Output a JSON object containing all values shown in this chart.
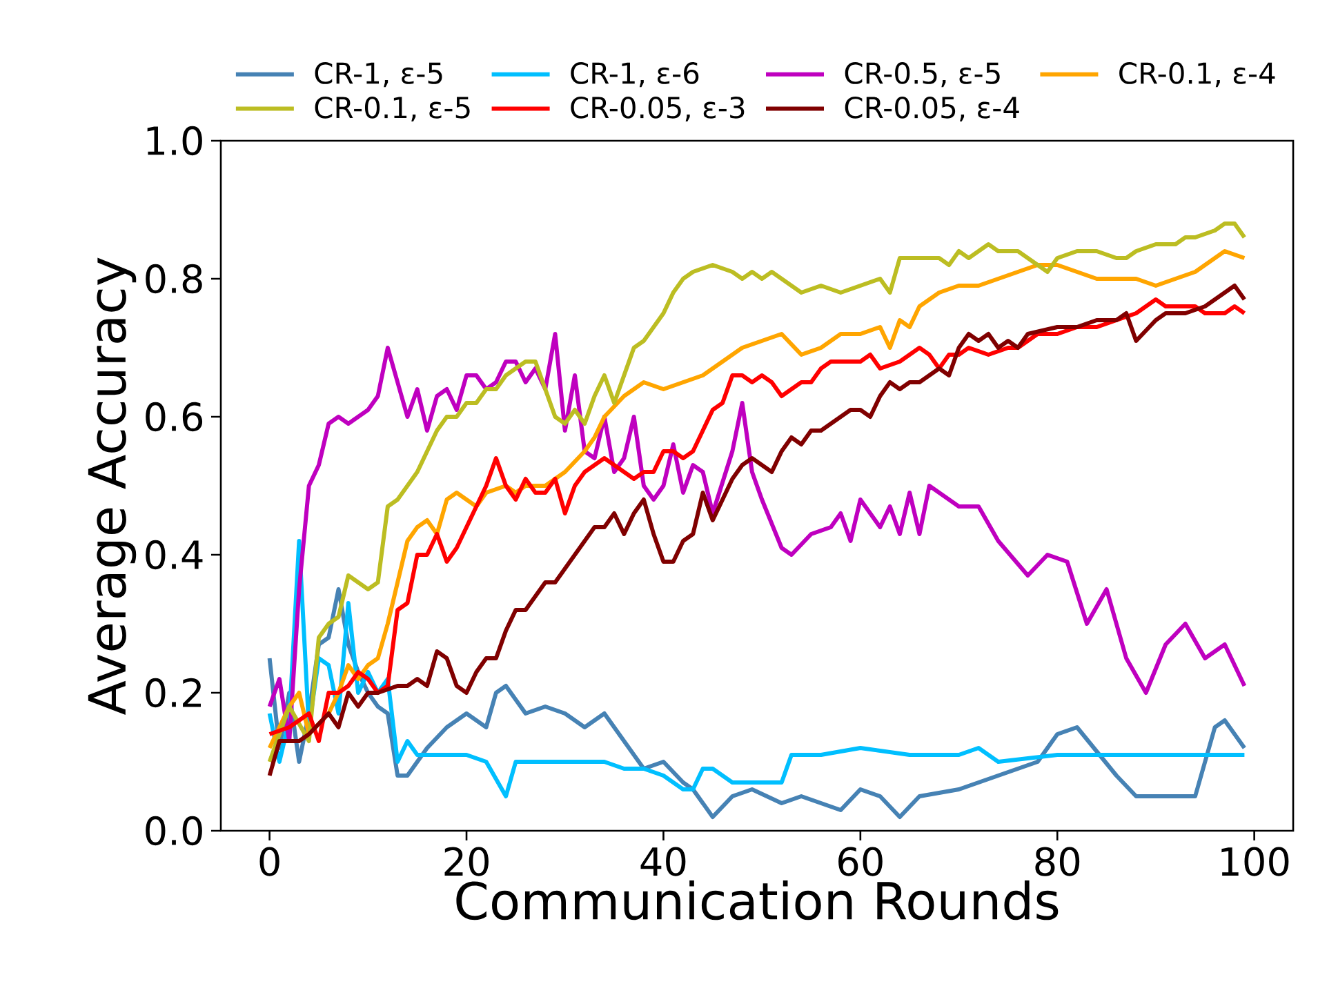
{
  "chart_data": {
    "type": "line",
    "xlabel": "Communication Rounds",
    "ylabel": "Average Accuracy",
    "xlim": [
      -4.95,
      103.95
    ],
    "ylim": [
      0,
      1
    ],
    "xticks": [
      0,
      20,
      40,
      60,
      80,
      100
    ],
    "yticks": [
      {
        "value": 0,
        "label": "0.0"
      },
      {
        "value": 0.2,
        "label": "0.2"
      },
      {
        "value": 0.4,
        "label": "0.4"
      },
      {
        "value": 0.6,
        "label": "0.6"
      },
      {
        "value": 0.8,
        "label": "0.8"
      },
      {
        "value": 1,
        "label": "1.0"
      }
    ],
    "legend": "top",
    "series": [
      {
        "name": "CR-1, ε-5",
        "color": "#4682b4",
        "x": [
          0,
          1,
          2,
          3,
          4,
          5,
          6,
          7,
          8,
          9,
          10,
          11,
          12,
          13,
          14,
          16,
          18,
          20,
          22,
          23,
          24,
          26,
          28,
          30,
          32,
          34,
          36,
          38,
          40,
          42,
          43,
          45,
          47,
          49,
          52,
          54,
          56,
          58,
          60,
          62,
          64,
          66,
          70,
          74,
          78,
          80,
          82,
          86,
          88,
          90,
          94,
          96,
          97,
          99
        ],
        "values": [
          0.25,
          0.12,
          0.2,
          0.1,
          0.17,
          0.27,
          0.28,
          0.35,
          0.27,
          0.23,
          0.2,
          0.18,
          0.17,
          0.08,
          0.08,
          0.12,
          0.15,
          0.17,
          0.15,
          0.2,
          0.21,
          0.17,
          0.18,
          0.17,
          0.15,
          0.17,
          0.13,
          0.09,
          0.1,
          0.07,
          0.06,
          0.02,
          0.05,
          0.06,
          0.04,
          0.05,
          0.04,
          0.03,
          0.06,
          0.05,
          0.02,
          0.05,
          0.06,
          0.08,
          0.1,
          0.14,
          0.15,
          0.08,
          0.05,
          0.05,
          0.05,
          0.15,
          0.16,
          0.12
        ]
      },
      {
        "name": "CR-1, ε-6",
        "color": "#00bfff",
        "x": [
          0,
          1,
          2,
          3,
          4,
          5,
          6,
          7,
          8,
          9,
          10,
          11,
          12,
          13,
          14,
          15,
          18,
          20,
          22,
          24,
          25,
          30,
          34,
          36,
          38,
          40,
          42,
          43,
          44,
          45,
          47,
          50,
          52,
          53,
          56,
          60,
          65,
          70,
          72,
          74,
          80,
          90,
          99
        ],
        "values": [
          0.17,
          0.1,
          0.16,
          0.42,
          0.15,
          0.25,
          0.24,
          0.17,
          0.33,
          0.2,
          0.23,
          0.2,
          0.22,
          0.1,
          0.13,
          0.11,
          0.11,
          0.11,
          0.1,
          0.05,
          0.1,
          0.1,
          0.1,
          0.09,
          0.09,
          0.08,
          0.06,
          0.06,
          0.09,
          0.09,
          0.07,
          0.07,
          0.07,
          0.11,
          0.11,
          0.12,
          0.11,
          0.11,
          0.12,
          0.1,
          0.11,
          0.11,
          0.11
        ]
      },
      {
        "name": "CR-0.5, ε-5",
        "color": "#bf00bf",
        "x": [
          0,
          1,
          2,
          3,
          4,
          5,
          6,
          7,
          8,
          9,
          10,
          11,
          12,
          13,
          14,
          15,
          16,
          17,
          18,
          19,
          20,
          21,
          22,
          23,
          24,
          25,
          26,
          27,
          28,
          29,
          30,
          31,
          32,
          33,
          34,
          35,
          36,
          37,
          38,
          39,
          40,
          41,
          42,
          43,
          44,
          45,
          47,
          48,
          49,
          50,
          52,
          53,
          55,
          57,
          58,
          59,
          60,
          62,
          63,
          64,
          65,
          66,
          67,
          70,
          72,
          74,
          77,
          79,
          81,
          83,
          85,
          87,
          89,
          91,
          93,
          95,
          97,
          99
        ],
        "values": [
          0.18,
          0.22,
          0.13,
          0.35,
          0.5,
          0.53,
          0.59,
          0.6,
          0.59,
          0.6,
          0.61,
          0.63,
          0.7,
          0.65,
          0.6,
          0.64,
          0.58,
          0.63,
          0.64,
          0.61,
          0.66,
          0.66,
          0.64,
          0.65,
          0.68,
          0.68,
          0.65,
          0.67,
          0.64,
          0.72,
          0.58,
          0.66,
          0.55,
          0.54,
          0.6,
          0.52,
          0.54,
          0.6,
          0.5,
          0.48,
          0.5,
          0.56,
          0.49,
          0.53,
          0.52,
          0.46,
          0.55,
          0.62,
          0.52,
          0.48,
          0.41,
          0.4,
          0.43,
          0.44,
          0.46,
          0.42,
          0.48,
          0.44,
          0.47,
          0.43,
          0.49,
          0.43,
          0.5,
          0.47,
          0.47,
          0.42,
          0.37,
          0.4,
          0.39,
          0.3,
          0.35,
          0.25,
          0.2,
          0.27,
          0.3,
          0.25,
          0.27,
          0.21
        ]
      },
      {
        "name": "CR-0.1, ε-4",
        "color": "#ffa500",
        "x": [
          0,
          2,
          3,
          4,
          6,
          7,
          8,
          9,
          10,
          11,
          12,
          14,
          15,
          16,
          17,
          18,
          19,
          20,
          21,
          22,
          24,
          25,
          26,
          28,
          30,
          32,
          33,
          34,
          36,
          37,
          38,
          40,
          42,
          44,
          46,
          48,
          50,
          52,
          54,
          56,
          58,
          60,
          62,
          63,
          64,
          65,
          66,
          68,
          70,
          72,
          74,
          76,
          78,
          80,
          82,
          84,
          86,
          88,
          90,
          92,
          94,
          96,
          97,
          99
        ],
        "values": [
          0.12,
          0.18,
          0.2,
          0.14,
          0.17,
          0.2,
          0.24,
          0.22,
          0.24,
          0.25,
          0.3,
          0.42,
          0.44,
          0.45,
          0.43,
          0.48,
          0.49,
          0.48,
          0.47,
          0.49,
          0.5,
          0.49,
          0.5,
          0.5,
          0.52,
          0.55,
          0.57,
          0.6,
          0.63,
          0.64,
          0.65,
          0.64,
          0.65,
          0.66,
          0.68,
          0.7,
          0.71,
          0.72,
          0.69,
          0.7,
          0.72,
          0.72,
          0.73,
          0.7,
          0.74,
          0.73,
          0.76,
          0.78,
          0.79,
          0.79,
          0.8,
          0.81,
          0.82,
          0.82,
          0.81,
          0.8,
          0.8,
          0.8,
          0.79,
          0.8,
          0.81,
          0.83,
          0.84,
          0.83
        ]
      },
      {
        "name": "CR-0.1, ε-5",
        "color": "#bcbd22",
        "x": [
          0,
          2,
          4,
          5,
          6,
          7,
          8,
          9,
          10,
          11,
          12,
          13,
          14,
          15,
          16,
          17,
          18,
          19,
          20,
          21,
          22,
          23,
          24,
          25,
          26,
          27,
          28,
          29,
          30,
          31,
          32,
          33,
          34,
          35,
          36,
          37,
          38,
          39,
          40,
          41,
          42,
          43,
          45,
          47,
          48,
          49,
          50,
          51,
          52,
          54,
          56,
          58,
          60,
          62,
          63,
          64,
          66,
          68,
          69,
          70,
          71,
          72,
          73,
          74,
          76,
          78,
          79,
          80,
          82,
          84,
          86,
          87,
          88,
          90,
          92,
          93,
          94,
          96,
          97,
          98,
          99
        ],
        "values": [
          0.1,
          0.18,
          0.13,
          0.28,
          0.3,
          0.31,
          0.37,
          0.36,
          0.35,
          0.36,
          0.47,
          0.48,
          0.5,
          0.52,
          0.55,
          0.58,
          0.6,
          0.6,
          0.62,
          0.62,
          0.64,
          0.64,
          0.66,
          0.67,
          0.68,
          0.68,
          0.64,
          0.6,
          0.59,
          0.61,
          0.59,
          0.63,
          0.66,
          0.62,
          0.66,
          0.7,
          0.71,
          0.73,
          0.75,
          0.78,
          0.8,
          0.81,
          0.82,
          0.81,
          0.8,
          0.81,
          0.8,
          0.81,
          0.8,
          0.78,
          0.79,
          0.78,
          0.79,
          0.8,
          0.78,
          0.83,
          0.83,
          0.83,
          0.82,
          0.84,
          0.83,
          0.84,
          0.85,
          0.84,
          0.84,
          0.82,
          0.81,
          0.83,
          0.84,
          0.84,
          0.83,
          0.83,
          0.84,
          0.85,
          0.85,
          0.86,
          0.86,
          0.87,
          0.88,
          0.88,
          0.86
        ]
      },
      {
        "name": "CR-0.05, ε-3",
        "color": "#ff0000",
        "x": [
          0,
          2,
          4,
          5,
          6,
          7,
          8,
          9,
          10,
          11,
          12,
          13,
          14,
          15,
          16,
          17,
          18,
          19,
          20,
          21,
          22,
          23,
          24,
          25,
          26,
          27,
          28,
          29,
          30,
          31,
          32,
          33,
          34,
          35,
          36,
          37,
          38,
          39,
          40,
          41,
          42,
          43,
          44,
          45,
          46,
          47,
          48,
          49,
          50,
          51,
          52,
          53,
          54,
          55,
          56,
          57,
          58,
          60,
          61,
          62,
          64,
          65,
          66,
          67,
          68,
          69,
          70,
          71,
          73,
          75,
          76,
          77,
          78,
          80,
          82,
          84,
          86,
          88,
          90,
          91,
          92,
          94,
          95,
          97,
          98,
          99
        ],
        "values": [
          0.14,
          0.15,
          0.17,
          0.13,
          0.2,
          0.2,
          0.21,
          0.23,
          0.22,
          0.2,
          0.21,
          0.32,
          0.33,
          0.4,
          0.4,
          0.43,
          0.39,
          0.41,
          0.44,
          0.47,
          0.5,
          0.54,
          0.5,
          0.48,
          0.51,
          0.49,
          0.49,
          0.51,
          0.46,
          0.5,
          0.52,
          0.53,
          0.54,
          0.53,
          0.52,
          0.51,
          0.52,
          0.52,
          0.55,
          0.55,
          0.54,
          0.55,
          0.58,
          0.61,
          0.62,
          0.66,
          0.66,
          0.65,
          0.66,
          0.65,
          0.63,
          0.64,
          0.65,
          0.65,
          0.67,
          0.68,
          0.68,
          0.68,
          0.69,
          0.67,
          0.68,
          0.69,
          0.7,
          0.69,
          0.67,
          0.69,
          0.69,
          0.7,
          0.69,
          0.7,
          0.7,
          0.71,
          0.72,
          0.72,
          0.73,
          0.73,
          0.74,
          0.75,
          0.77,
          0.76,
          0.76,
          0.76,
          0.75,
          0.75,
          0.76,
          0.75
        ]
      },
      {
        "name": "CR-0.05, ε-4",
        "color": "#800000",
        "x": [
          0,
          1,
          3,
          4,
          6,
          7,
          8,
          9,
          10,
          11,
          13,
          14,
          15,
          16,
          17,
          18,
          19,
          20,
          21,
          22,
          23,
          24,
          25,
          26,
          27,
          28,
          29,
          30,
          32,
          33,
          34,
          35,
          36,
          37,
          38,
          39,
          40,
          41,
          42,
          43,
          44,
          45,
          46,
          47,
          48,
          49,
          50,
          51,
          52,
          53,
          54,
          55,
          56,
          57,
          58,
          59,
          60,
          61,
          62,
          63,
          64,
          65,
          66,
          68,
          69,
          70,
          71,
          72,
          73,
          74,
          75,
          76,
          77,
          80,
          82,
          84,
          86,
          87,
          88,
          90,
          91,
          93,
          95,
          97,
          98,
          99
        ],
        "values": [
          0.08,
          0.13,
          0.13,
          0.14,
          0.17,
          0.15,
          0.2,
          0.18,
          0.2,
          0.2,
          0.21,
          0.21,
          0.22,
          0.21,
          0.26,
          0.25,
          0.21,
          0.2,
          0.23,
          0.25,
          0.25,
          0.29,
          0.32,
          0.32,
          0.34,
          0.36,
          0.36,
          0.38,
          0.42,
          0.44,
          0.44,
          0.46,
          0.43,
          0.46,
          0.48,
          0.43,
          0.39,
          0.39,
          0.42,
          0.43,
          0.49,
          0.45,
          0.48,
          0.51,
          0.53,
          0.54,
          0.53,
          0.52,
          0.55,
          0.57,
          0.56,
          0.58,
          0.58,
          0.59,
          0.6,
          0.61,
          0.61,
          0.6,
          0.63,
          0.65,
          0.64,
          0.65,
          0.65,
          0.67,
          0.66,
          0.7,
          0.72,
          0.71,
          0.72,
          0.7,
          0.71,
          0.7,
          0.72,
          0.73,
          0.73,
          0.74,
          0.74,
          0.75,
          0.71,
          0.74,
          0.75,
          0.75,
          0.76,
          0.78,
          0.79,
          0.77
        ]
      }
    ]
  }
}
